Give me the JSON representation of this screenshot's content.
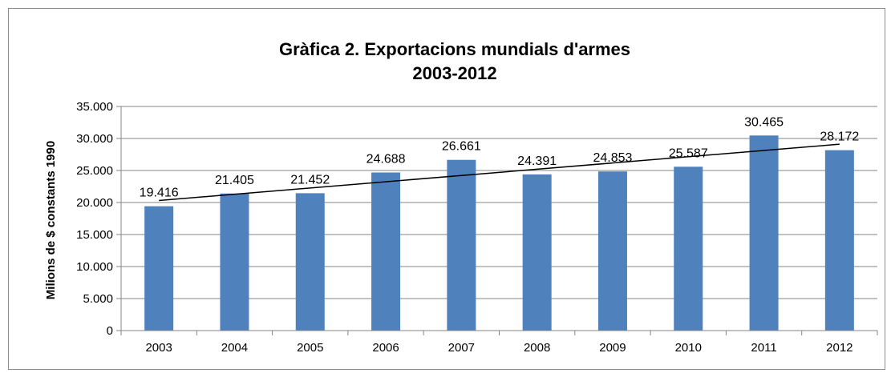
{
  "chart_data": {
    "type": "bar",
    "title": "Gràfica 2. Exportacions mundials d'armes",
    "subtitle": "2003-2012",
    "xlabel": "",
    "ylabel": "Milions de $ constants 1990",
    "categories": [
      "2003",
      "2004",
      "2005",
      "2006",
      "2007",
      "2008",
      "2009",
      "2010",
      "2011",
      "2012"
    ],
    "values": [
      19416,
      21405,
      21452,
      24688,
      26661,
      24391,
      24853,
      25587,
      30465,
      28172
    ],
    "data_labels": [
      "19.416",
      "21.405",
      "21.452",
      "24.688",
      "26.661",
      "24.391",
      "24.853",
      "25.587",
      "30.465",
      "28.172"
    ],
    "ylim": [
      0,
      35000
    ],
    "yticks": [
      0,
      5000,
      10000,
      15000,
      20000,
      25000,
      30000,
      35000
    ],
    "ytick_labels": [
      "0",
      "5.000",
      "10.000",
      "15.000",
      "20.000",
      "25.000",
      "30.000",
      "35.000"
    ],
    "trendline": "linear",
    "grid": true,
    "legend": "none",
    "bar_color": "#4f81bd",
    "grid_color": "#868686",
    "trend_color": "#000000"
  }
}
